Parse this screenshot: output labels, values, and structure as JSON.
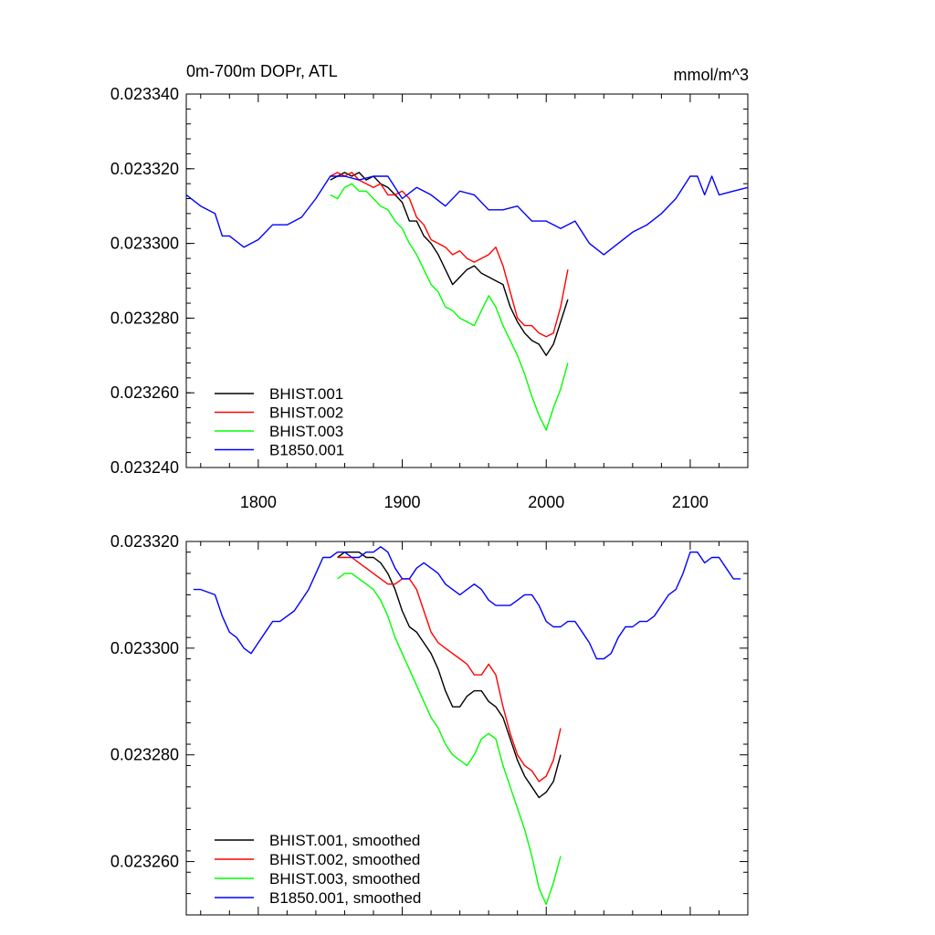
{
  "chart_data": [
    {
      "type": "line",
      "title": "0m-700m DOPr, ATL",
      "units": "mmol/m^3",
      "xlim": [
        1750,
        2140
      ],
      "ylim": [
        0.02324,
        0.02334
      ],
      "xticks": [
        1800,
        1900,
        2000,
        2100
      ],
      "xtick_labels": [
        "1800",
        "1900",
        "2000",
        "2100"
      ],
      "yticks": [
        0.02324,
        0.02326,
        0.02328,
        0.0233,
        0.02332,
        0.02334
      ],
      "ytick_labels": [
        "0.023240",
        "0.023260",
        "0.023280",
        "0.023300",
        "0.023320",
        "0.023340"
      ],
      "legend_position": "bottom-left",
      "series": [
        {
          "name": "BHIST.001",
          "color": "#000000",
          "x": [
            1850,
            1855,
            1860,
            1865,
            1870,
            1875,
            1880,
            1885,
            1890,
            1895,
            1900,
            1905,
            1910,
            1915,
            1920,
            1925,
            1930,
            1935,
            1940,
            1945,
            1950,
            1955,
            1960,
            1965,
            1970,
            1975,
            1980,
            1985,
            1990,
            1995,
            2000,
            2005,
            2010,
            2015
          ],
          "y": [
            0.023317,
            0.023318,
            0.023319,
            0.023318,
            0.023319,
            0.023317,
            0.023318,
            0.023316,
            0.023315,
            0.023313,
            0.023311,
            0.023306,
            0.023306,
            0.023302,
            0.0233,
            0.023297,
            0.023293,
            0.023289,
            0.023291,
            0.023293,
            0.023294,
            0.023292,
            0.023291,
            0.02329,
            0.023289,
            0.023283,
            0.023279,
            0.023276,
            0.023274,
            0.023273,
            0.02327,
            0.023273,
            0.023279,
            0.023285
          ]
        },
        {
          "name": "BHIST.002",
          "color": "#ff0000",
          "x": [
            1850,
            1855,
            1860,
            1865,
            1870,
            1875,
            1880,
            1885,
            1890,
            1895,
            1900,
            1905,
            1910,
            1915,
            1920,
            1925,
            1930,
            1935,
            1940,
            1945,
            1950,
            1955,
            1960,
            1965,
            1970,
            1975,
            1980,
            1985,
            1990,
            1995,
            2000,
            2005,
            2010,
            2015
          ],
          "y": [
            0.023318,
            0.023319,
            0.023318,
            0.023319,
            0.023317,
            0.023316,
            0.023315,
            0.023316,
            0.023313,
            0.023313,
            0.023314,
            0.023312,
            0.023307,
            0.023305,
            0.023301,
            0.0233,
            0.023299,
            0.023297,
            0.023298,
            0.023296,
            0.023295,
            0.023296,
            0.023297,
            0.023299,
            0.023294,
            0.023287,
            0.02328,
            0.023278,
            0.023278,
            0.023276,
            0.023275,
            0.023276,
            0.023283,
            0.023293
          ]
        },
        {
          "name": "BHIST.003",
          "color": "#00ff00",
          "x": [
            1850,
            1855,
            1860,
            1865,
            1870,
            1875,
            1880,
            1885,
            1890,
            1895,
            1900,
            1905,
            1910,
            1915,
            1920,
            1925,
            1930,
            1935,
            1940,
            1945,
            1950,
            1955,
            1960,
            1965,
            1970,
            1975,
            1980,
            1985,
            1990,
            1995,
            2000,
            2005,
            2010,
            2015
          ],
          "y": [
            0.023313,
            0.023312,
            0.023315,
            0.023316,
            0.023314,
            0.023314,
            0.023312,
            0.02331,
            0.023309,
            0.023306,
            0.023304,
            0.0233,
            0.023297,
            0.023293,
            0.023289,
            0.023287,
            0.023283,
            0.023282,
            0.02328,
            0.023279,
            0.023278,
            0.023282,
            0.023286,
            0.023283,
            0.023278,
            0.023274,
            0.02327,
            0.023265,
            0.023259,
            0.023254,
            0.02325,
            0.023256,
            0.023261,
            0.023268
          ]
        },
        {
          "name": "B1850.001",
          "color": "#0000ff",
          "x": [
            1750,
            1760,
            1770,
            1775,
            1780,
            1790,
            1800,
            1810,
            1820,
            1830,
            1840,
            1850,
            1860,
            1870,
            1880,
            1890,
            1900,
            1910,
            1920,
            1930,
            1940,
            1950,
            1960,
            1970,
            1980,
            1990,
            2000,
            2010,
            2020,
            2030,
            2040,
            2050,
            2060,
            2070,
            2080,
            2090,
            2100,
            2105,
            2110,
            2115,
            2120,
            2130,
            2140
          ],
          "y": [
            0.023313,
            0.02331,
            0.023308,
            0.023302,
            0.023302,
            0.023299,
            0.023301,
            0.023305,
            0.023305,
            0.023307,
            0.023312,
            0.023318,
            0.023318,
            0.023317,
            0.023318,
            0.023318,
            0.023312,
            0.023315,
            0.023313,
            0.02331,
            0.023314,
            0.023313,
            0.023309,
            0.023309,
            0.02331,
            0.023306,
            0.023306,
            0.023304,
            0.023306,
            0.0233,
            0.023297,
            0.0233,
            0.023303,
            0.023305,
            0.023308,
            0.023312,
            0.023318,
            0.023318,
            0.023313,
            0.023318,
            0.023313,
            0.023314,
            0.023315
          ]
        }
      ]
    },
    {
      "type": "line",
      "title": "",
      "xlim": [
        1750,
        2140
      ],
      "ylim": [
        0.02325,
        0.02332
      ],
      "xticks": [
        1800,
        1900,
        2000,
        2100
      ],
      "xtick_labels": [],
      "yticks": [
        0.02326,
        0.02328,
        0.0233,
        0.02332
      ],
      "ytick_labels": [
        "0.023260",
        "0.023280",
        "0.023300",
        "0.023320"
      ],
      "legend_position": "bottom-left",
      "series": [
        {
          "name": "BHIST.001, smoothed",
          "color": "#000000",
          "x": [
            1855,
            1860,
            1865,
            1870,
            1875,
            1880,
            1885,
            1890,
            1895,
            1900,
            1905,
            1910,
            1915,
            1920,
            1925,
            1930,
            1935,
            1940,
            1945,
            1950,
            1955,
            1960,
            1965,
            1970,
            1975,
            1980,
            1985,
            1990,
            1995,
            2000,
            2005,
            2010
          ],
          "y": [
            0.023317,
            0.023318,
            0.023318,
            0.023318,
            0.023317,
            0.023317,
            0.023316,
            0.023314,
            0.023311,
            0.023307,
            0.023304,
            0.023303,
            0.023301,
            0.023299,
            0.023296,
            0.023292,
            0.023289,
            0.023289,
            0.023291,
            0.023292,
            0.023292,
            0.02329,
            0.023289,
            0.023287,
            0.023283,
            0.023279,
            0.023276,
            0.023274,
            0.023272,
            0.023273,
            0.023275,
            0.02328
          ]
        },
        {
          "name": "BHIST.002, smoothed",
          "color": "#ff0000",
          "x": [
            1855,
            1860,
            1865,
            1870,
            1875,
            1880,
            1885,
            1890,
            1895,
            1900,
            1905,
            1910,
            1915,
            1920,
            1925,
            1930,
            1935,
            1940,
            1945,
            1950,
            1955,
            1960,
            1965,
            1970,
            1975,
            1980,
            1985,
            1990,
            1995,
            2000,
            2005,
            2010
          ],
          "y": [
            0.023317,
            0.023317,
            0.023317,
            0.023316,
            0.023315,
            0.023314,
            0.023313,
            0.023312,
            0.023312,
            0.023313,
            0.023313,
            0.023311,
            0.023307,
            0.023303,
            0.023301,
            0.0233,
            0.023299,
            0.023298,
            0.023297,
            0.023295,
            0.023295,
            0.023297,
            0.023295,
            0.023289,
            0.023284,
            0.02328,
            0.023278,
            0.023277,
            0.023275,
            0.023276,
            0.023279,
            0.023285
          ]
        },
        {
          "name": "BHIST.003, smoothed",
          "color": "#00ff00",
          "x": [
            1855,
            1860,
            1865,
            1870,
            1875,
            1880,
            1885,
            1890,
            1895,
            1900,
            1905,
            1910,
            1915,
            1920,
            1925,
            1930,
            1935,
            1940,
            1945,
            1950,
            1955,
            1960,
            1965,
            1970,
            1975,
            1980,
            1985,
            1990,
            1995,
            2000,
            2005,
            2010
          ],
          "y": [
            0.023313,
            0.023314,
            0.023314,
            0.023313,
            0.023312,
            0.023311,
            0.023309,
            0.023306,
            0.023302,
            0.023299,
            0.023296,
            0.023293,
            0.02329,
            0.023287,
            0.023285,
            0.023282,
            0.02328,
            0.023279,
            0.023278,
            0.02328,
            0.023283,
            0.023284,
            0.023283,
            0.023278,
            0.023274,
            0.02327,
            0.023266,
            0.023261,
            0.023255,
            0.023252,
            0.023256,
            0.023261
          ]
        },
        {
          "name": "B1850.001, smoothed",
          "color": "#0000ff",
          "x": [
            1755,
            1760,
            1770,
            1775,
            1780,
            1785,
            1790,
            1795,
            1800,
            1805,
            1810,
            1815,
            1820,
            1825,
            1830,
            1835,
            1840,
            1845,
            1850,
            1855,
            1860,
            1865,
            1870,
            1875,
            1880,
            1885,
            1890,
            1895,
            1900,
            1905,
            1910,
            1915,
            1920,
            1925,
            1930,
            1935,
            1940,
            1945,
            1950,
            1955,
            1960,
            1965,
            1970,
            1975,
            1980,
            1985,
            1990,
            1995,
            2000,
            2005,
            2010,
            2015,
            2020,
            2025,
            2030,
            2035,
            2040,
            2045,
            2050,
            2055,
            2060,
            2065,
            2070,
            2075,
            2080,
            2085,
            2090,
            2095,
            2100,
            2105,
            2110,
            2115,
            2120,
            2125,
            2130,
            2135
          ],
          "y": [
            0.023311,
            0.023311,
            0.02331,
            0.023306,
            0.023303,
            0.023302,
            0.0233,
            0.023299,
            0.023301,
            0.023303,
            0.023305,
            0.023305,
            0.023306,
            0.023307,
            0.023309,
            0.023311,
            0.023314,
            0.023317,
            0.023317,
            0.023318,
            0.023318,
            0.023317,
            0.023317,
            0.023318,
            0.023318,
            0.023319,
            0.023318,
            0.023315,
            0.023313,
            0.023313,
            0.023315,
            0.023316,
            0.023315,
            0.023314,
            0.023312,
            0.023311,
            0.02331,
            0.023311,
            0.023312,
            0.023311,
            0.023309,
            0.023308,
            0.023308,
            0.023308,
            0.023309,
            0.02331,
            0.02331,
            0.023308,
            0.023305,
            0.023304,
            0.023304,
            0.023305,
            0.023305,
            0.023303,
            0.023301,
            0.023298,
            0.023298,
            0.023299,
            0.023302,
            0.023304,
            0.023304,
            0.023305,
            0.023305,
            0.023306,
            0.023308,
            0.02331,
            0.023311,
            0.023314,
            0.023318,
            0.023318,
            0.023316,
            0.023317,
            0.023317,
            0.023315,
            0.023313,
            0.023313
          ]
        }
      ]
    }
  ]
}
